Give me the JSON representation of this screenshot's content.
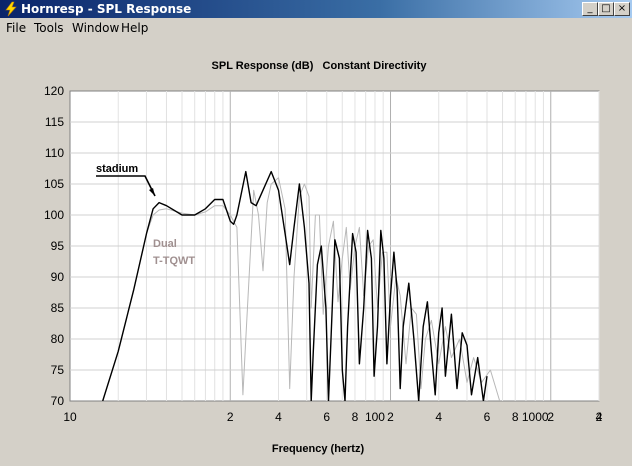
{
  "window": {
    "title": "Hornresp - SPL Response"
  },
  "menu": [
    {
      "label": "File"
    },
    {
      "label": "Tools"
    },
    {
      "label": "Window"
    },
    {
      "label": "Help"
    }
  ],
  "window_buttons": {
    "minimize": "_",
    "maximize": "□",
    "close": "×"
  },
  "chart_data": {
    "type": "line",
    "title": "SPL Response (dB)   Constant Directivity",
    "xlabel": "Frequency (hertz)",
    "ylabel": "",
    "x_scale": "log",
    "xlim": [
      10,
      20000
    ],
    "ylim": [
      70,
      120
    ],
    "grid": true,
    "x_tick_labels": [
      "10",
      "2",
      "4",
      "6",
      "8",
      "100",
      "2",
      "4",
      "6",
      "8",
      "1000",
      "2",
      "4",
      "6",
      "8",
      "10000",
      "2"
    ],
    "y_ticks": [
      70,
      75,
      80,
      85,
      90,
      95,
      100,
      105,
      110,
      115,
      120
    ],
    "annotations": [
      {
        "text": "stadium",
        "color": "#000000"
      },
      {
        "text": "Dual",
        "color": "#a09090"
      },
      {
        "text": "T-TQWT",
        "color": "#a09090"
      }
    ],
    "series": [
      {
        "color": "#000000",
        "points": [
          [
            16,
            70
          ],
          [
            20,
            78
          ],
          [
            25,
            88
          ],
          [
            30,
            97
          ],
          [
            33,
            101
          ],
          [
            36,
            102
          ],
          [
            40,
            101.5
          ],
          [
            50,
            100
          ],
          [
            60,
            100
          ],
          [
            70,
            101
          ],
          [
            80,
            102.5
          ],
          [
            90,
            102.5
          ],
          [
            100,
            99
          ],
          [
            105,
            98.5
          ],
          [
            110,
            100
          ],
          [
            125,
            107
          ],
          [
            135,
            102
          ],
          [
            145,
            101.5
          ],
          [
            160,
            104
          ],
          [
            180,
            107
          ],
          [
            200,
            104
          ],
          [
            220,
            97
          ],
          [
            235,
            92
          ],
          [
            250,
            98
          ],
          [
            270,
            105
          ],
          [
            290,
            98
          ],
          [
            310,
            89
          ],
          [
            320,
            70
          ],
          [
            330,
            78
          ],
          [
            350,
            92
          ],
          [
            370,
            95
          ],
          [
            395,
            85
          ],
          [
            410,
            70
          ],
          [
            425,
            80
          ],
          [
            450,
            96
          ],
          [
            480,
            93
          ],
          [
            500,
            75
          ],
          [
            520,
            70
          ],
          [
            540,
            82
          ],
          [
            580,
            97
          ],
          [
            610,
            94
          ],
          [
            640,
            76
          ],
          [
            680,
            85
          ],
          [
            720,
            97.5
          ],
          [
            760,
            93
          ],
          [
            790,
            74
          ],
          [
            830,
            82
          ],
          [
            870,
            97.5
          ],
          [
            910,
            93
          ],
          [
            950,
            76
          ],
          [
            1000,
            87
          ],
          [
            1050,
            94
          ],
          [
            1100,
            88
          ],
          [
            1150,
            72
          ],
          [
            1200,
            82
          ],
          [
            1300,
            89
          ],
          [
            1400,
            80
          ],
          [
            1500,
            70
          ],
          [
            1600,
            82
          ],
          [
            1700,
            86
          ],
          [
            1800,
            78
          ],
          [
            1900,
            71
          ],
          [
            2000,
            81
          ],
          [
            2100,
            85
          ],
          [
            2200,
            74
          ],
          [
            2400,
            84
          ],
          [
            2600,
            72
          ],
          [
            2800,
            81
          ],
          [
            3000,
            79
          ],
          [
            3200,
            71
          ],
          [
            3500,
            77
          ],
          [
            3800,
            70
          ],
          [
            4000,
            74
          ]
        ]
      },
      {
        "color": "#b8b8b8",
        "points": [
          [
            16,
            70
          ],
          [
            20,
            78
          ],
          [
            25,
            88
          ],
          [
            30,
            97
          ],
          [
            33,
            100
          ],
          [
            36,
            100.8
          ],
          [
            40,
            101
          ],
          [
            50,
            100.3
          ],
          [
            60,
            100
          ],
          [
            70,
            100.5
          ],
          [
            80,
            101.5
          ],
          [
            90,
            101.5
          ],
          [
            100,
            100
          ],
          [
            110,
            98
          ],
          [
            120,
            71
          ],
          [
            125,
            80
          ],
          [
            140,
            104
          ],
          [
            150,
            100
          ],
          [
            160,
            91
          ],
          [
            170,
            102
          ],
          [
            180,
            105
          ],
          [
            200,
            106
          ],
          [
            220,
            101
          ],
          [
            235,
            72
          ],
          [
            250,
            90
          ],
          [
            270,
            103
          ],
          [
            290,
            105
          ],
          [
            310,
            103
          ],
          [
            320,
            85
          ],
          [
            340,
            100
          ],
          [
            360,
            100
          ],
          [
            380,
            84
          ],
          [
            410,
            95
          ],
          [
            440,
            99
          ],
          [
            470,
            86
          ],
          [
            500,
            93
          ],
          [
            530,
            98
          ],
          [
            560,
            88
          ],
          [
            600,
            95
          ],
          [
            640,
            98
          ],
          [
            680,
            87
          ],
          [
            730,
            95
          ],
          [
            780,
            96
          ],
          [
            830,
            85
          ],
          [
            890,
            94
          ],
          [
            950,
            94
          ],
          [
            1000,
            82
          ],
          [
            1080,
            90
          ],
          [
            1150,
            87
          ],
          [
            1250,
            76
          ],
          [
            1350,
            85
          ],
          [
            1450,
            84
          ],
          [
            1550,
            72
          ],
          [
            1650,
            80
          ],
          [
            1800,
            83
          ],
          [
            2000,
            76
          ],
          [
            2200,
            82
          ],
          [
            2400,
            77
          ],
          [
            2700,
            80
          ],
          [
            3000,
            73
          ],
          [
            3300,
            77
          ],
          [
            3700,
            73
          ],
          [
            4200,
            75
          ],
          [
            4800,
            70
          ]
        ]
      }
    ]
  }
}
